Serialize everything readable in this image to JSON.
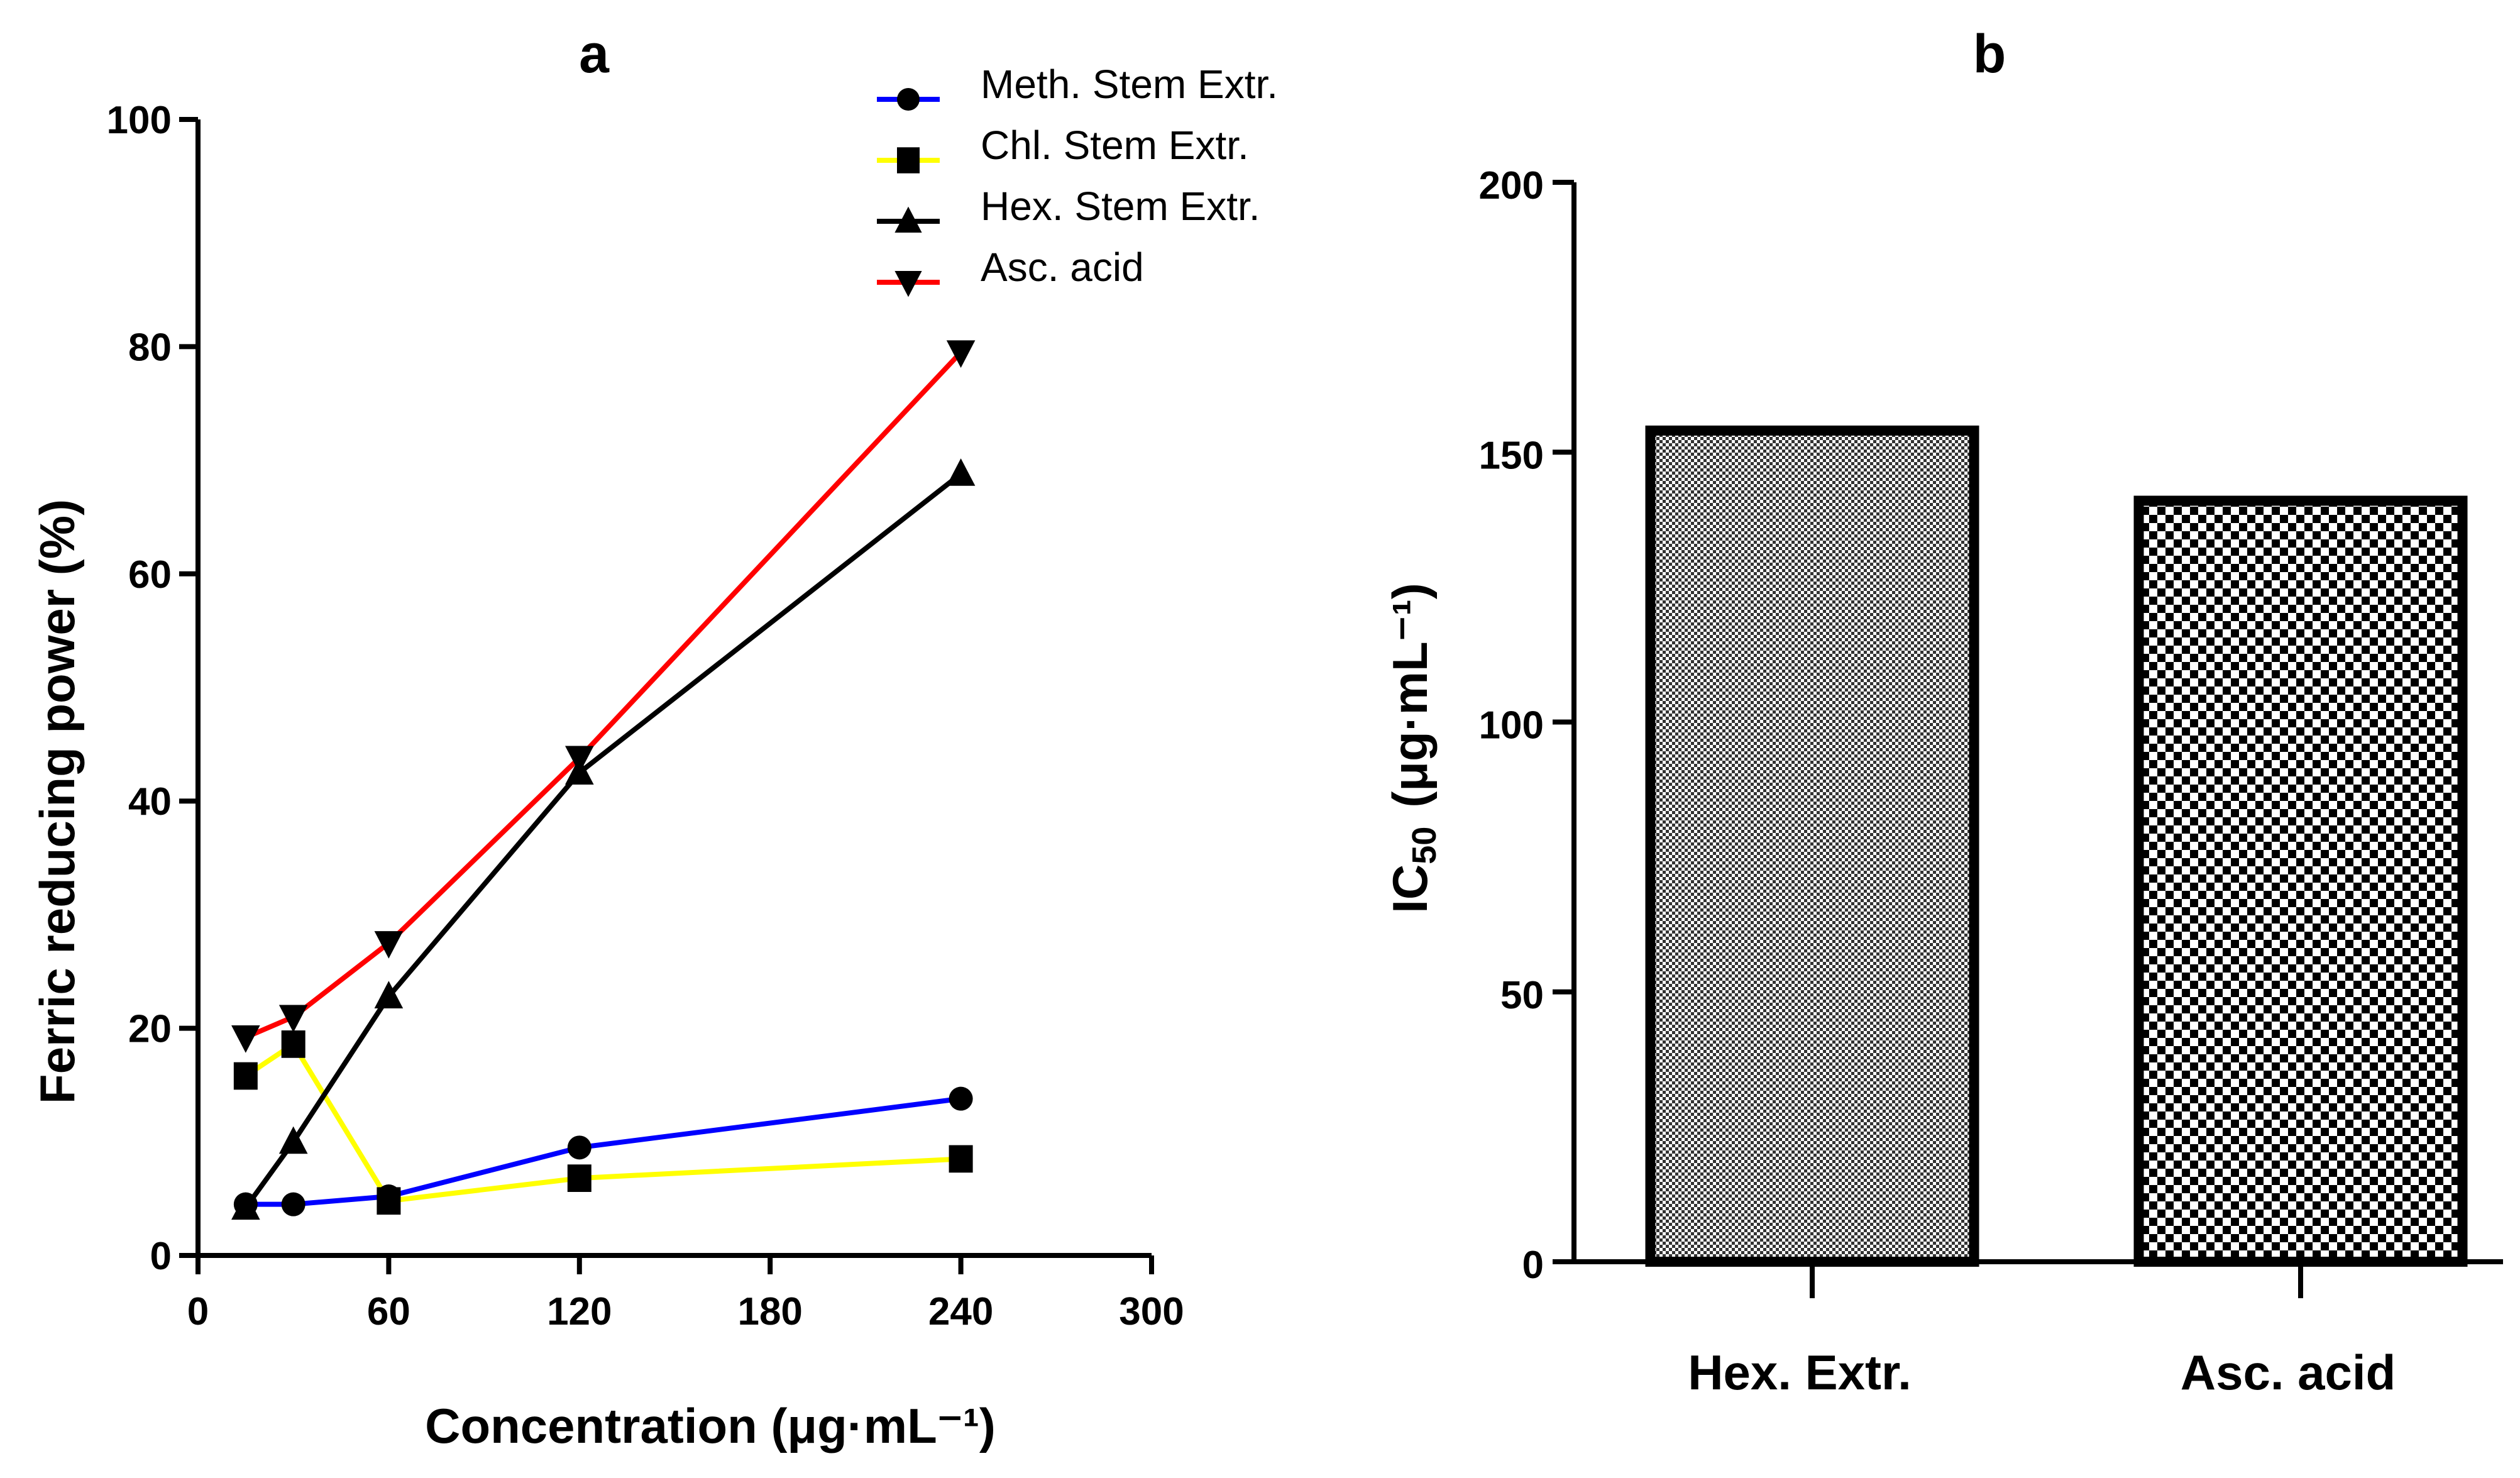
{
  "chart_data": [
    {
      "panel": "a",
      "type": "line",
      "xlabel": "Concentration (μg·mL⁻¹)",
      "ylabel": "Ferric reducing power  (%)",
      "xlim": [
        0,
        300
      ],
      "ylim": [
        0,
        100
      ],
      "xticks": [
        0,
        60,
        120,
        180,
        240,
        300
      ],
      "yticks": [
        0,
        20,
        40,
        60,
        80,
        100
      ],
      "x": [
        15,
        30,
        60,
        120,
        240
      ],
      "series": [
        {
          "name": "Meth. Stem Extr.",
          "color": "#0000ff",
          "marker": "circle",
          "values": [
            4.5,
            4.5,
            5.2,
            9.5,
            13.8
          ]
        },
        {
          "name": "Chl. Stem Extr.",
          "color": "#ffff00",
          "marker": "square",
          "values": [
            15.8,
            18.6,
            4.8,
            6.8,
            8.5
          ]
        },
        {
          "name": "Hex. Stem Extr.",
          "color": "#000000",
          "marker": "triangle-up",
          "values": [
            4.2,
            10.0,
            22.8,
            42.5,
            68.8
          ]
        },
        {
          "name": "Asc. acid",
          "color": "#ff0000",
          "marker": "triangle-down",
          "values": [
            19.2,
            21.0,
            27.5,
            43.8,
            79.5
          ]
        }
      ]
    },
    {
      "panel": "b",
      "type": "bar",
      "ylabel": "IC",
      "ylabel_sub": "50",
      "ylabel_unit": "(μg·mL⁻¹)",
      "ylim": [
        0,
        200
      ],
      "yticks": [
        0,
        50,
        100,
        150,
        200
      ],
      "categories": [
        "Hex. Extr.",
        "Asc. acid"
      ],
      "values": [
        154,
        141
      ],
      "patterns": [
        "fine-dots",
        "checker"
      ]
    }
  ]
}
